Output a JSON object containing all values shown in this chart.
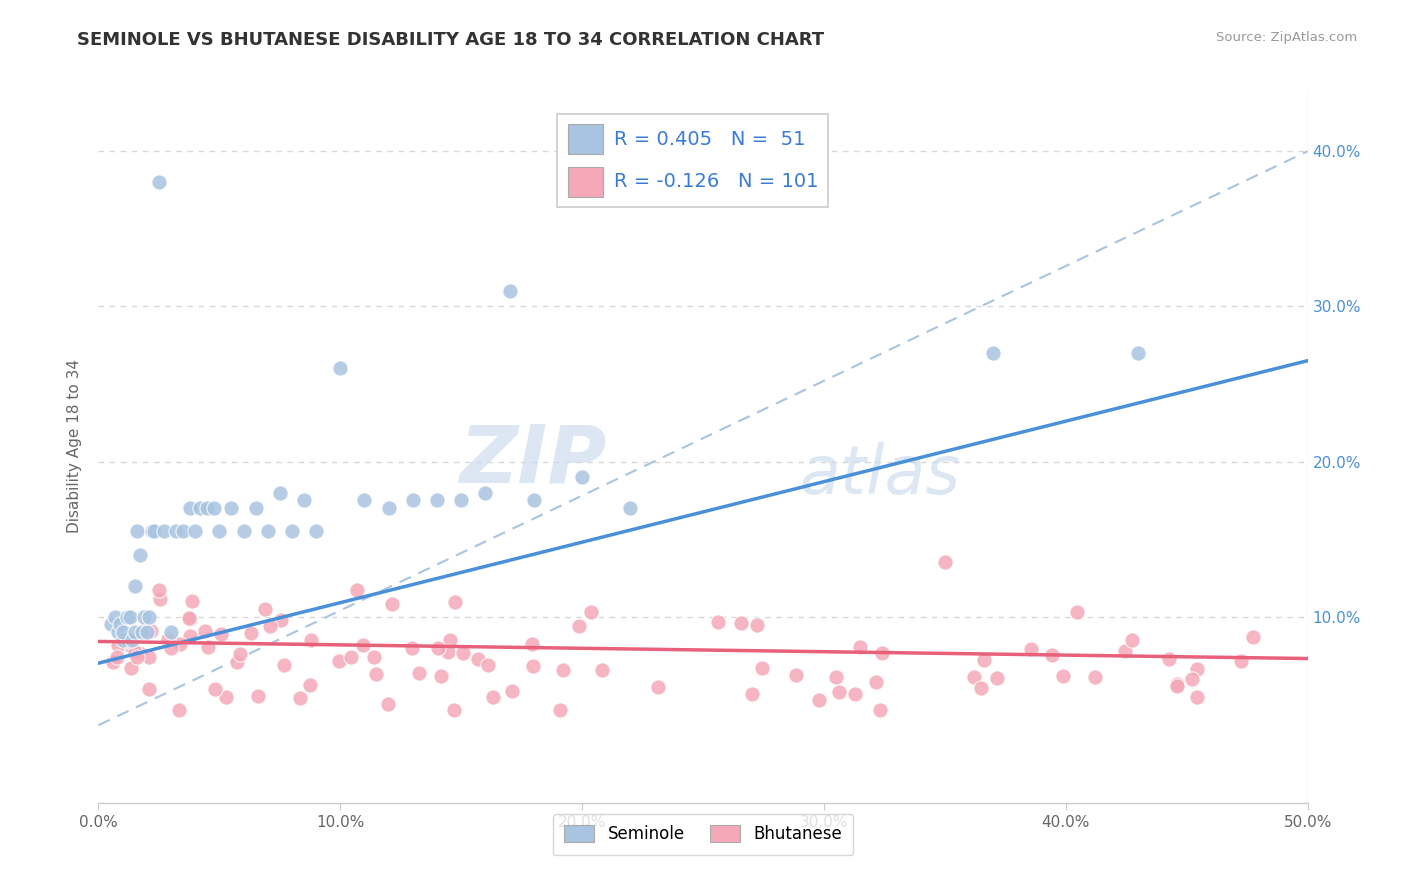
{
  "title": "SEMINOLE VS BHUTANESE DISABILITY AGE 18 TO 34 CORRELATION CHART",
  "source_text": "Source: ZipAtlas.com",
  "ylabel": "Disability Age 18 to 34",
  "xlim": [
    0.0,
    0.5
  ],
  "ylim": [
    -0.02,
    0.44
  ],
  "xtick_values": [
    0.0,
    0.1,
    0.2,
    0.3,
    0.4,
    0.5
  ],
  "xtick_labels": [
    "0.0%",
    "10.0%",
    "20.0%",
    "30.0%",
    "40.0%",
    "50.0%"
  ],
  "ytick_values": [
    0.1,
    0.2,
    0.3,
    0.4
  ],
  "ytick_labels": [
    "10.0%",
    "20.0%",
    "30.0%",
    "40.0%"
  ],
  "seminole_color": "#a8c4e0",
  "bhutanese_color": "#f4a8b8",
  "seminole_line_color": "#4a90d9",
  "bhutanese_line_color": "#e8607a",
  "dashed_line_color": "#a8c4e0",
  "R_seminole": 0.405,
  "N_seminole": 51,
  "R_bhutanese": -0.126,
  "N_bhutanese": 101,
  "watermark_zip": "ZIP",
  "watermark_atlas": "atlas",
  "grid_color": "#d8d8d8",
  "background_color": "#ffffff",
  "title_color": "#333333",
  "source_color": "#999999",
  "ytick_color": "#4a90d9",
  "xtick_color": "#666666",
  "ylabel_color": "#666666",
  "legend_edge_color": "#cccccc"
}
